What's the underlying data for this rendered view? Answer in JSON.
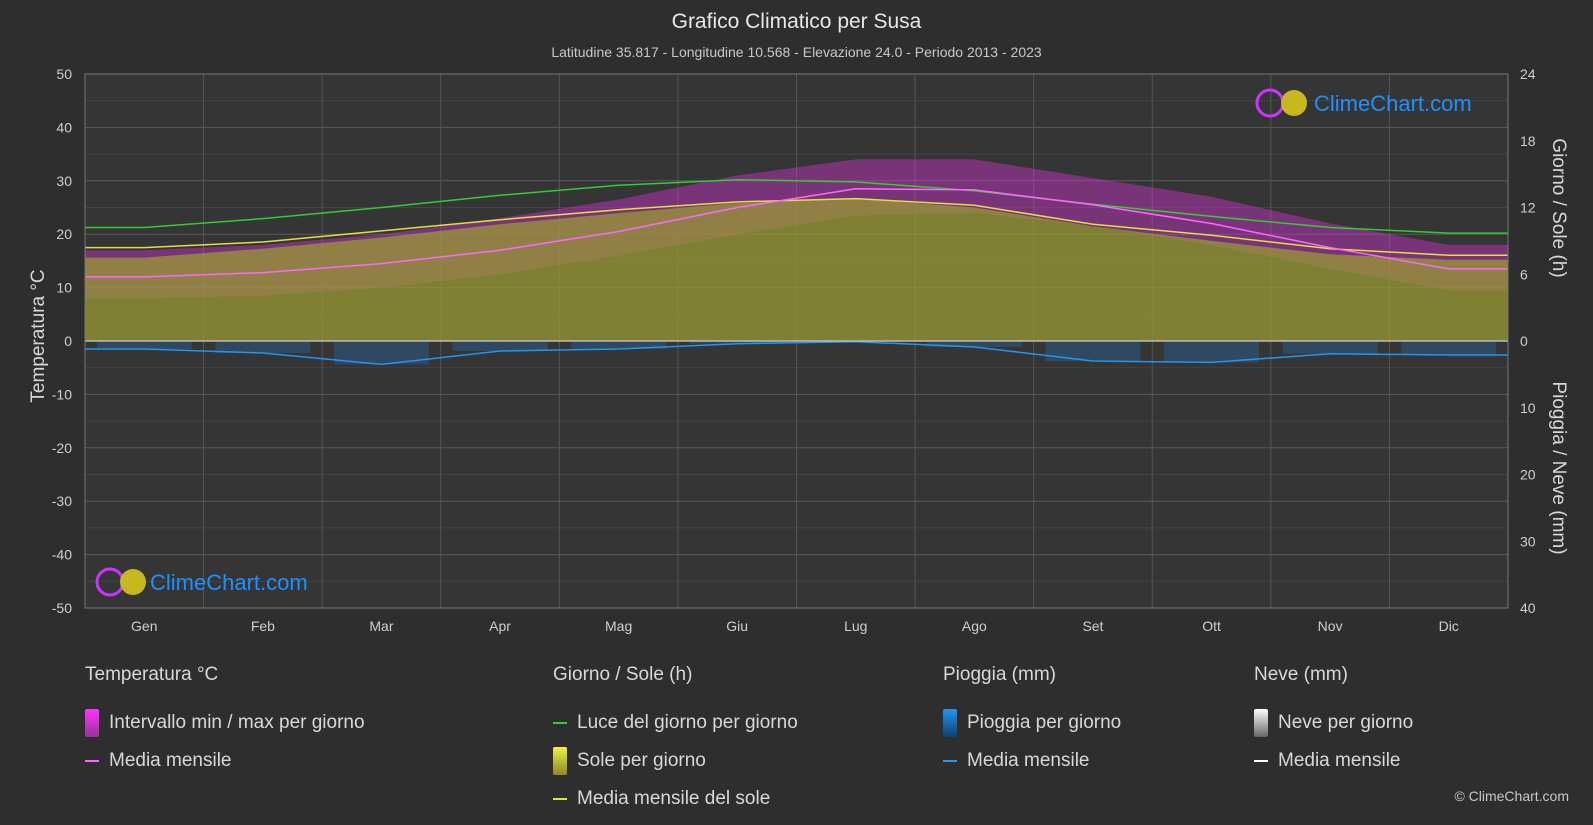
{
  "header": {
    "title": "Grafico Climatico per Susa",
    "subtitle": "Latitudine 35.817 - Longitudine 10.568 - Elevazione 24.0 - Periodo 2013 - 2023"
  },
  "chart_data": {
    "type": "area",
    "categories": [
      "Gen",
      "Feb",
      "Mar",
      "Apr",
      "Mag",
      "Giu",
      "Lug",
      "Ago",
      "Set",
      "Ott",
      "Nov",
      "Dic"
    ],
    "y_left": {
      "label": "Temperatura °C",
      "range": [
        -50,
        50
      ],
      "ticks": [
        "50",
        "40",
        "30",
        "20",
        "10",
        "0",
        "-10",
        "-20",
        "-30",
        "-40",
        "-50"
      ]
    },
    "y_right_top": {
      "label": "Giorno / Sole (h)",
      "range": [
        0,
        24
      ],
      "ticks": [
        "24",
        "18",
        "12",
        "6",
        "0"
      ]
    },
    "y_right_bottom": {
      "label": "Pioggia / Neve (mm)",
      "range": [
        0,
        40
      ],
      "ticks": [
        "10",
        "20",
        "30",
        "40"
      ]
    },
    "grid": true,
    "series": [
      {
        "name": "Luce del giorno per giorno",
        "unit": "h",
        "color": "#33cc33",
        "values": [
          10.2,
          11.0,
          12.0,
          13.1,
          14.0,
          14.5,
          14.3,
          13.5,
          12.3,
          11.2,
          10.2,
          9.7
        ]
      },
      {
        "name": "Sole per giorno",
        "unit": "h",
        "color": "#a8a83a",
        "values": [
          7.5,
          8.3,
          9.3,
          10.5,
          11.5,
          12.4,
          12.8,
          12.0,
          10.3,
          9.0,
          7.8,
          7.3
        ]
      },
      {
        "name": "Media mensile del sole",
        "unit": "h",
        "color": "#e0e040",
        "values": [
          8.4,
          8.9,
          9.9,
          10.9,
          11.8,
          12.5,
          12.8,
          12.2,
          10.5,
          9.5,
          8.3,
          7.7
        ]
      },
      {
        "name": "Media mensile",
        "unit": "°C",
        "color": "#ff66ff",
        "values": [
          12.0,
          12.8,
          14.5,
          17.0,
          20.5,
          25.0,
          28.5,
          28.3,
          25.5,
          22.0,
          17.5,
          13.5
        ]
      },
      {
        "name": "Intervallo min / max per giorno",
        "unit": "°C",
        "color": "#dd22dd",
        "max": [
          17.0,
          18.0,
          20.0,
          23.0,
          26.5,
          31.0,
          34.0,
          34.0,
          30.5,
          27.0,
          22.0,
          18.0
        ],
        "min": [
          8.0,
          8.5,
          10.0,
          12.5,
          16.0,
          20.0,
          23.5,
          24.0,
          21.5,
          18.0,
          13.5,
          9.5
        ]
      },
      {
        "name": "Pioggia per giorno",
        "unit": "mm",
        "color": "#1e88e5",
        "values": [
          1.2,
          1.8,
          3.5,
          1.5,
          1.2,
          0.4,
          0.1,
          0.9,
          3.0,
          3.2,
          1.9,
          2.1
        ]
      },
      {
        "name": "Media mensile pioggia",
        "unit": "mm",
        "color": "#2196f3",
        "values": [
          1.2,
          1.8,
          3.5,
          1.5,
          1.2,
          0.4,
          0.1,
          0.9,
          3.0,
          3.2,
          1.9,
          2.1
        ]
      }
    ]
  },
  "legend": {
    "temp": {
      "header": "Temperatura °C",
      "items": [
        "Intervallo min / max per giorno",
        "Media mensile"
      ]
    },
    "sun": {
      "header": "Giorno / Sole (h)",
      "items": [
        "Luce del giorno per giorno",
        "Sole per giorno",
        "Media mensile del sole"
      ]
    },
    "rain": {
      "header": "Pioggia (mm)",
      "items": [
        "Pioggia per giorno",
        "Media mensile"
      ]
    },
    "snow": {
      "header": "Neve (mm)",
      "items": [
        "Neve per giorno",
        "Media mensile"
      ]
    }
  },
  "branding": {
    "logo_text": "ClimeChart.com",
    "copyright": "© ClimeChart.com"
  },
  "colors": {
    "background": "#2e2e2e",
    "daylight": "#33cc33",
    "sunshine_fill": "#9a9a35",
    "sunshine_line": "#e0e040",
    "temp_range": "#cc33cc",
    "temp_mean": "#ff66ff",
    "rain": "#1e88e5",
    "snow": "#ffffff",
    "logo_blue": "#1e90ff"
  }
}
